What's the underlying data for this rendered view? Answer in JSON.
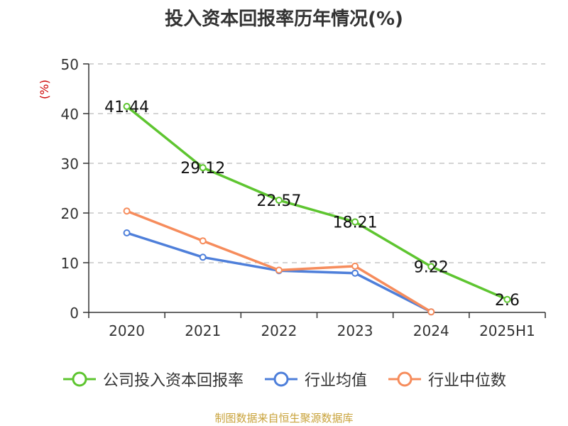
{
  "title": "投入资本回报率历年情况(%)",
  "source": "制图数据来自恒生聚源数据库",
  "chart_data": {
    "type": "line",
    "ylabel": "(%)",
    "ylim": [
      0,
      50
    ],
    "yticks": [
      0,
      10,
      20,
      30,
      40,
      50
    ],
    "grid": true,
    "legend_position": "bottom",
    "categories": [
      "2020",
      "2021",
      "2022",
      "2023",
      "2024",
      "2025H1"
    ],
    "series": [
      {
        "name": "公司投入资本回报率",
        "color": "#5ec530",
        "values": [
          41.44,
          29.12,
          22.57,
          18.21,
          9.22,
          2.6
        ],
        "labels": [
          "41.44",
          "29.12",
          "22.57",
          "18.21",
          "9.22",
          "2.6"
        ]
      },
      {
        "name": "行业均值",
        "color": "#4e7fda",
        "values": [
          16.0,
          11.1,
          8.4,
          7.9,
          0.1,
          null
        ]
      },
      {
        "name": "行业中位数",
        "color": "#f68c5c",
        "values": [
          20.4,
          14.4,
          8.5,
          9.3,
          0.1,
          null
        ]
      }
    ]
  }
}
